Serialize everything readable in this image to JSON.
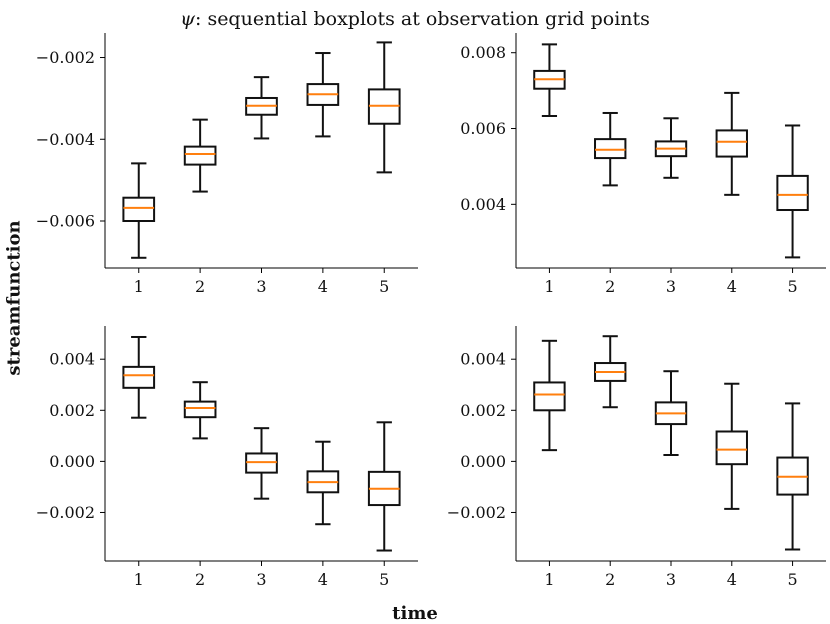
{
  "figure": {
    "title": "ψ: sequential boxplots at observation grid points",
    "title_symbol": "ψ",
    "title_rest": ": sequential boxplots at observation grid points",
    "xlabel": "time",
    "ylabel": "streamfunction",
    "colors": {
      "box": "#111111",
      "median": "#ff7f0e"
    }
  },
  "chart_data": [
    {
      "type": "box",
      "panel": "top-left",
      "categories": [
        "1",
        "2",
        "3",
        "4",
        "5"
      ],
      "ylim": [
        -0.00715,
        -0.0014
      ],
      "yticks": [
        -0.006,
        -0.004,
        -0.002
      ],
      "ytick_labels": [
        "−0.006",
        "−0.004",
        "−0.002"
      ],
      "boxes": [
        {
          "whislo": -0.0069,
          "q1": -0.006,
          "med": -0.00568,
          "q3": -0.00543,
          "whishi": -0.00459
        },
        {
          "whislo": -0.00528,
          "q1": -0.00462,
          "med": -0.00436,
          "q3": -0.00418,
          "whishi": -0.00352
        },
        {
          "whislo": -0.00398,
          "q1": -0.0034,
          "med": -0.00318,
          "q3": -0.00299,
          "whishi": -0.00248
        },
        {
          "whislo": -0.00393,
          "q1": -0.00316,
          "med": -0.0029,
          "q3": -0.00265,
          "whishi": -0.00189
        },
        {
          "whislo": -0.00481,
          "q1": -0.00362,
          "med": -0.00318,
          "q3": -0.00278,
          "whishi": -0.00163
        }
      ]
    },
    {
      "type": "box",
      "panel": "top-right",
      "categories": [
        "1",
        "2",
        "3",
        "4",
        "5"
      ],
      "ylim": [
        0.00232,
        0.00852
      ],
      "yticks": [
        0.004,
        0.006,
        0.008
      ],
      "ytick_labels": [
        "0.004",
        "0.006",
        "0.008"
      ],
      "boxes": [
        {
          "whislo": 0.00633,
          "q1": 0.00705,
          "med": 0.0073,
          "q3": 0.00752,
          "whishi": 0.00822
        },
        {
          "whislo": 0.0045,
          "q1": 0.00522,
          "med": 0.00544,
          "q3": 0.00572,
          "whishi": 0.00641
        },
        {
          "whislo": 0.0047,
          "q1": 0.00527,
          "med": 0.00547,
          "q3": 0.00566,
          "whishi": 0.00627
        },
        {
          "whislo": 0.00425,
          "q1": 0.00526,
          "med": 0.00565,
          "q3": 0.00595,
          "whishi": 0.00694
        },
        {
          "whislo": 0.0026,
          "q1": 0.00385,
          "med": 0.00425,
          "q3": 0.00475,
          "whishi": 0.00608
        }
      ]
    },
    {
      "type": "box",
      "panel": "bottom-left",
      "categories": [
        "1",
        "2",
        "3",
        "4",
        "5"
      ],
      "ylim": [
        -0.0039,
        0.0053
      ],
      "yticks": [
        -0.002,
        0.0,
        0.002,
        0.004
      ],
      "ytick_labels": [
        "−0.002",
        "0.000",
        "0.002",
        "0.004"
      ],
      "boxes": [
        {
          "whislo": 0.00171,
          "q1": 0.00288,
          "med": 0.00337,
          "q3": 0.0037,
          "whishi": 0.00487
        },
        {
          "whislo": 0.0009,
          "q1": 0.00173,
          "med": 0.00209,
          "q3": 0.00234,
          "whishi": 0.0031
        },
        {
          "whislo": -0.00146,
          "q1": -0.00044,
          "med": -3e-05,
          "q3": 0.00031,
          "whishi": 0.0013
        },
        {
          "whislo": -0.00246,
          "q1": -0.00121,
          "med": -0.00081,
          "q3": -0.00039,
          "whishi": 0.00077
        },
        {
          "whislo": -0.00349,
          "q1": -0.00171,
          "med": -0.00107,
          "q3": -0.00041,
          "whishi": 0.00153
        }
      ]
    },
    {
      "type": "box",
      "panel": "bottom-right",
      "categories": [
        "1",
        "2",
        "3",
        "4",
        "5"
      ],
      "ylim": [
        -0.0039,
        0.0053
      ],
      "yticks": [
        -0.002,
        0.0,
        0.002,
        0.004
      ],
      "ytick_labels": [
        "−0.002",
        "0.000",
        "0.002",
        "0.004"
      ],
      "boxes": [
        {
          "whislo": 0.00044,
          "q1": 0.002,
          "med": 0.00262,
          "q3": 0.00309,
          "whishi": 0.00472
        },
        {
          "whislo": 0.00212,
          "q1": 0.00315,
          "med": 0.0035,
          "q3": 0.00385,
          "whishi": 0.0049
        },
        {
          "whislo": 0.00025,
          "q1": 0.00146,
          "med": 0.00188,
          "q3": 0.00231,
          "whishi": 0.00353
        },
        {
          "whislo": -0.00186,
          "q1": -0.00011,
          "med": 0.00046,
          "q3": 0.00117,
          "whishi": 0.00304
        },
        {
          "whislo": -0.00345,
          "q1": -0.0013,
          "med": -0.0006,
          "q3": 0.00015,
          "whishi": 0.00227
        }
      ]
    }
  ]
}
